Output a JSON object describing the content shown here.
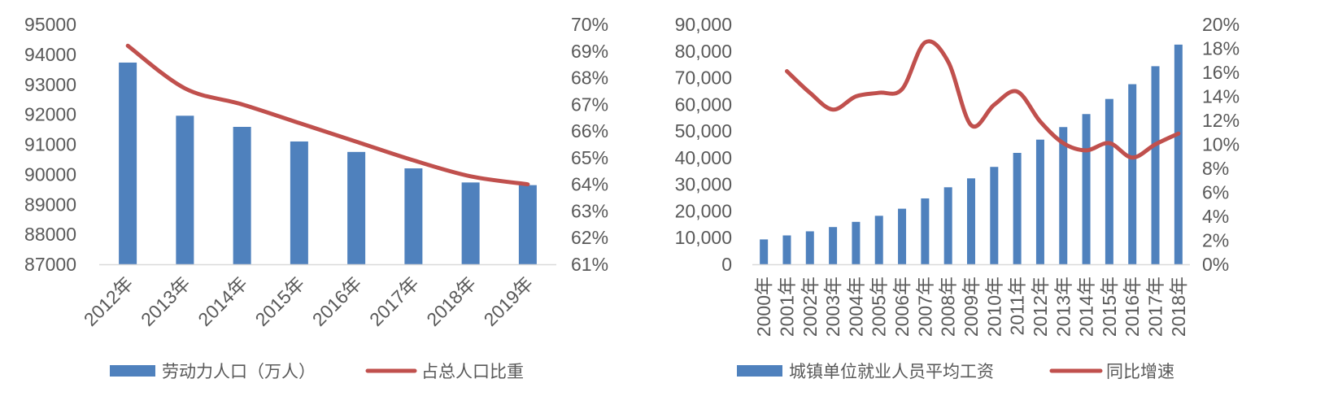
{
  "colors": {
    "bar": "#4f81bd",
    "line": "#c0504d",
    "axis": "#d9d9d9",
    "text": "#595959"
  },
  "chart_data": [
    {
      "type": "bar",
      "categories": [
        "2012年",
        "2013年",
        "2014年",
        "2015年",
        "2016年",
        "2017年",
        "2018年",
        "2019年"
      ],
      "series": [
        {
          "name": "劳动力人口（万人）",
          "type": "bar",
          "axis": "left",
          "values": [
            93727,
            91954,
            91583,
            91096,
            90747,
            90199,
            89729,
            89640
          ]
        },
        {
          "name": "占总人口比重",
          "type": "line",
          "axis": "right",
          "values": [
            69.2,
            67.6,
            67.0,
            66.3,
            65.6,
            64.9,
            64.3,
            64.0
          ]
        }
      ],
      "y_left": {
        "min": 87000,
        "max": 95000,
        "ticks": [
          "87000",
          "88000",
          "89000",
          "90000",
          "91000",
          "92000",
          "93000",
          "94000",
          "95000"
        ]
      },
      "y_right": {
        "min": 61,
        "max": 70,
        "ticks": [
          "61%",
          "62%",
          "63%",
          "64%",
          "65%",
          "66%",
          "67%",
          "68%",
          "69%",
          "70%"
        ]
      },
      "grid": false,
      "legend_position": "bottom"
    },
    {
      "type": "bar",
      "categories": [
        "2000年",
        "2001年",
        "2002年",
        "2003年",
        "2004年",
        "2005年",
        "2006年",
        "2007年",
        "2008年",
        "2009年",
        "2010年",
        "2011年",
        "2012年",
        "2013年",
        "2014年",
        "2015年",
        "2016年",
        "2017年",
        "2018年"
      ],
      "series": [
        {
          "name": "城镇单位就业人员平均工资",
          "type": "bar",
          "axis": "left",
          "values": [
            9333,
            10834,
            12373,
            13969,
            15920,
            18200,
            20856,
            24721,
            28898,
            32244,
            36539,
            41799,
            46769,
            51483,
            56360,
            62029,
            67569,
            74318,
            82413
          ]
        },
        {
          "name": "同比增速",
          "type": "line",
          "axis": "right",
          "values": [
            null,
            16.1,
            14.3,
            12.9,
            14.0,
            14.3,
            14.6,
            18.5,
            16.9,
            11.6,
            13.3,
            14.4,
            11.9,
            10.1,
            9.5,
            10.1,
            8.9,
            10.0,
            10.9
          ]
        }
      ],
      "y_left": {
        "min": 0,
        "max": 90000,
        "ticks": [
          "0",
          "10,000",
          "20,000",
          "30,000",
          "40,000",
          "50,000",
          "60,000",
          "70,000",
          "80,000",
          "90,000"
        ]
      },
      "y_right": {
        "min": 0,
        "max": 20,
        "ticks": [
          "0%",
          "2%",
          "4%",
          "6%",
          "8%",
          "10%",
          "12%",
          "14%",
          "16%",
          "18%",
          "20%"
        ]
      },
      "grid": false,
      "legend_position": "bottom"
    }
  ]
}
